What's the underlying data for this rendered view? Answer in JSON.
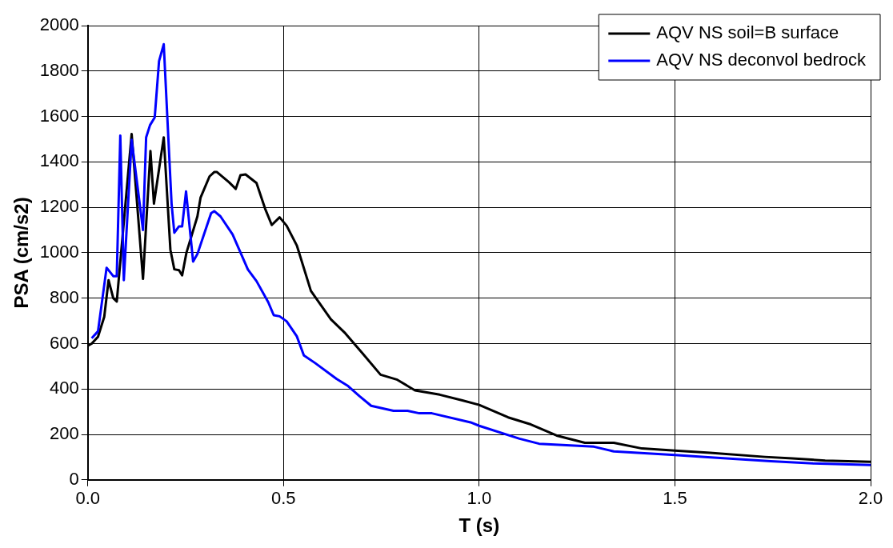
{
  "chart_data": {
    "type": "line",
    "xlabel": "T (s)",
    "ylabel": "PSA (cm/s2)",
    "xlim": [
      0,
      2
    ],
    "xticks": [
      {
        "value": 0,
        "label": "0.0"
      },
      {
        "value": 0.5,
        "label": "0.5"
      },
      {
        "value": 1,
        "label": "1.0"
      },
      {
        "value": 1.5,
        "label": "1.5"
      },
      {
        "value": 2,
        "label": "2.0"
      }
    ],
    "ylim": [
      0,
      2000
    ],
    "yticks": [
      0,
      200,
      400,
      600,
      800,
      1000,
      1200,
      1400,
      1600,
      1800,
      2000
    ],
    "grid": true,
    "legend": "top right",
    "marker": "none",
    "line_style": "solid",
    "series": [
      {
        "name": "AQV NS soil=B surface",
        "color": "#000000",
        "x": [
          0,
          0.01,
          0.026,
          0.042,
          0.053,
          0.065,
          0.074,
          0.112,
          0.141,
          0.16,
          0.169,
          0.194,
          0.211,
          0.221,
          0.233,
          0.241,
          0.252,
          0.28,
          0.288,
          0.311,
          0.323,
          0.33,
          0.361,
          0.378,
          0.39,
          0.403,
          0.431,
          0.453,
          0.47,
          0.49,
          0.508,
          0.534,
          0.57,
          0.621,
          0.658,
          0.702,
          0.748,
          0.789,
          0.836,
          0.899,
          0.957,
          1,
          1.074,
          1.132,
          1.198,
          1.27,
          1.344,
          1.416,
          1.5,
          1.59,
          1.73,
          1.8,
          1.884,
          2
        ],
        "values": [
          590,
          600,
          630,
          718,
          879,
          800,
          785,
          1523,
          885,
          1448,
          1216,
          1508,
          1013,
          927,
          923,
          900,
          1000,
          1160,
          1242,
          1336,
          1355,
          1355,
          1310,
          1281,
          1341,
          1345,
          1307,
          1194,
          1122,
          1156,
          1119,
          1032,
          832,
          707,
          645,
          557,
          463,
          442,
          394,
          375,
          350,
          330,
          275,
          244,
          195,
          163,
          163,
          138,
          129,
          119,
          101,
          94,
          85,
          79
        ]
      },
      {
        "name": "AQV NS deconvol bedrock",
        "color": "#0000ff",
        "x": [
          0.01,
          0.026,
          0.048,
          0.065,
          0.074,
          0.083,
          0.092,
          0.112,
          0.141,
          0.149,
          0.159,
          0.171,
          0.182,
          0.194,
          0.214,
          0.221,
          0.233,
          0.241,
          0.251,
          0.269,
          0.28,
          0.315,
          0.323,
          0.339,
          0.37,
          0.409,
          0.431,
          0.461,
          0.475,
          0.49,
          0.508,
          0.534,
          0.552,
          0.581,
          0.636,
          0.665,
          0.694,
          0.724,
          0.781,
          0.817,
          0.847,
          0.879,
          0.978,
          1,
          1.103,
          1.153,
          1.293,
          1.344,
          1.5,
          1.6,
          1.745,
          1.853,
          2
        ],
        "values": [
          624,
          654,
          934,
          897,
          897,
          1516,
          879,
          1497,
          1100,
          1508,
          1562,
          1596,
          1844,
          1918,
          1216,
          1088,
          1116,
          1116,
          1270,
          961,
          994,
          1174,
          1183,
          1160,
          1080,
          926,
          875,
          782,
          725,
          720,
          698,
          632,
          548,
          514,
          444,
          413,
          369,
          326,
          304,
          304,
          293,
          293,
          253,
          238,
          181,
          159,
          146,
          125,
          109,
          98,
          82,
          72,
          65
        ]
      }
    ]
  }
}
